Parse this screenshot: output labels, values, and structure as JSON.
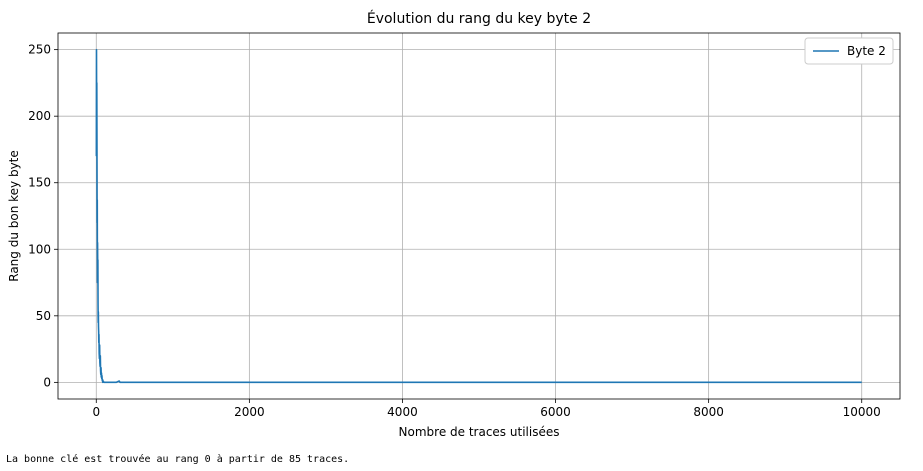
{
  "chart_data": {
    "type": "line",
    "title": "Évolution du rang du key byte 2",
    "xlabel": "Nombre de traces utilisées",
    "ylabel": "Rang du bon key byte",
    "xlim": [
      -500,
      10500
    ],
    "ylim": [
      -12.5,
      262.5
    ],
    "xticks": [
      0,
      2000,
      4000,
      6000,
      8000,
      10000
    ],
    "yticks": [
      0,
      50,
      100,
      150,
      200,
      250
    ],
    "grid": true,
    "legend_position": "top-right",
    "series": [
      {
        "name": "Byte 2",
        "color": "#1f77b4",
        "x": [
          1,
          3,
          5,
          7,
          9,
          11,
          13,
          15,
          17,
          19,
          21,
          23,
          25,
          27,
          29,
          31,
          33,
          35,
          38,
          41,
          44,
          47,
          50,
          53,
          56,
          59,
          62,
          65,
          68,
          71,
          74,
          77,
          80,
          83,
          85,
          90,
          100,
          120,
          150,
          200,
          260,
          300,
          310,
          320,
          400,
          1000,
          2000,
          4000,
          6000,
          8000,
          10000
        ],
        "y": [
          170,
          250,
          195,
          225,
          180,
          120,
          137,
          75,
          105,
          85,
          92,
          60,
          45,
          53,
          42,
          38,
          30,
          36,
          22,
          18,
          28,
          15,
          12,
          20,
          9,
          6,
          11,
          4,
          7,
          3,
          5,
          2,
          1,
          2,
          0,
          1,
          0,
          0,
          0,
          0,
          0,
          1,
          0,
          0,
          0,
          0,
          0,
          0,
          0,
          0,
          0
        ]
      }
    ]
  },
  "output_text": "La bonne clé est trouvée au rang 0 à partir de 85 traces."
}
